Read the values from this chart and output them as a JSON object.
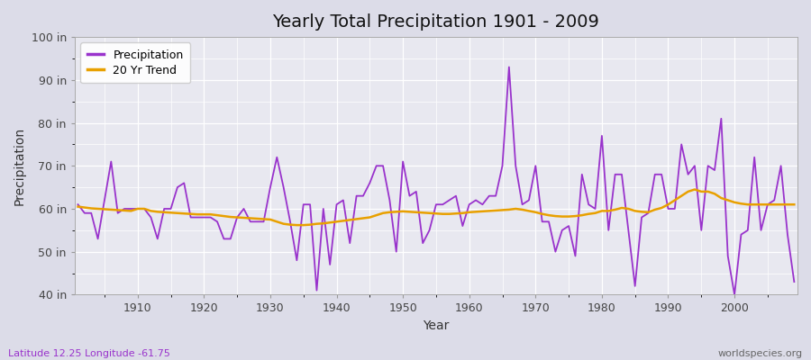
{
  "title": "Yearly Total Precipitation 1901 - 2009",
  "xlabel": "Year",
  "ylabel": "Precipitation",
  "subtitle_left": "Latitude 12.25 Longitude -61.75",
  "subtitle_right": "worldspecies.org",
  "ylim": [
    40,
    100
  ],
  "yticks": [
    40,
    50,
    60,
    70,
    80,
    90,
    100
  ],
  "ytick_labels": [
    "40 in",
    "50 in",
    "60 in",
    "70 in",
    "80 in",
    "90 in",
    "100 in"
  ],
  "xticks": [
    1910,
    1920,
    1930,
    1940,
    1950,
    1960,
    1970,
    1980,
    1990,
    2000
  ],
  "precip_color": "#9933cc",
  "trend_color": "#e8a000",
  "bg_color": "#e8e8f0",
  "plot_bg_color": "#e8e8f0",
  "fig_bg_color": "#dcdce8",
  "years": [
    1901,
    1902,
    1903,
    1904,
    1905,
    1906,
    1907,
    1908,
    1909,
    1910,
    1911,
    1912,
    1913,
    1914,
    1915,
    1916,
    1917,
    1918,
    1919,
    1920,
    1921,
    1922,
    1923,
    1924,
    1925,
    1926,
    1927,
    1928,
    1929,
    1930,
    1931,
    1932,
    1933,
    1934,
    1935,
    1936,
    1937,
    1938,
    1939,
    1940,
    1941,
    1942,
    1943,
    1944,
    1945,
    1946,
    1947,
    1948,
    1949,
    1950,
    1951,
    1952,
    1953,
    1954,
    1955,
    1956,
    1957,
    1958,
    1959,
    1960,
    1961,
    1962,
    1963,
    1964,
    1965,
    1966,
    1967,
    1968,
    1969,
    1970,
    1971,
    1972,
    1973,
    1974,
    1975,
    1976,
    1977,
    1978,
    1979,
    1980,
    1981,
    1982,
    1983,
    1984,
    1985,
    1986,
    1987,
    1988,
    1989,
    1990,
    1991,
    1992,
    1993,
    1994,
    1995,
    1996,
    1997,
    1998,
    1999,
    2000,
    2001,
    2002,
    2003,
    2004,
    2005,
    2006,
    2007,
    2008,
    2009
  ],
  "precipitation": [
    61,
    59,
    59,
    53,
    62,
    71,
    59,
    60,
    60,
    60,
    60,
    58,
    53,
    60,
    60,
    65,
    66,
    58,
    58,
    58,
    58,
    57,
    53,
    53,
    58,
    60,
    57,
    57,
    57,
    65,
    72,
    65,
    57,
    48,
    61,
    61,
    41,
    60,
    47,
    61,
    62,
    52,
    63,
    63,
    66,
    70,
    70,
    62,
    50,
    71,
    63,
    64,
    52,
    55,
    61,
    61,
    62,
    63,
    56,
    61,
    62,
    61,
    63,
    63,
    70,
    93,
    70,
    61,
    62,
    70,
    57,
    57,
    50,
    55,
    56,
    49,
    68,
    61,
    60,
    77,
    55,
    68,
    68,
    55,
    42,
    58,
    59,
    68,
    68,
    60,
    60,
    75,
    68,
    70,
    55,
    70,
    69,
    81,
    49,
    40,
    54,
    55,
    72,
    55,
    61,
    62,
    70,
    54,
    43
  ],
  "trend": [
    60.5,
    60.3,
    60.1,
    60.0,
    59.9,
    59.8,
    59.7,
    59.6,
    59.5,
    60.0,
    60.0,
    59.5,
    59.3,
    59.2,
    59.1,
    59.0,
    58.9,
    58.8,
    58.7,
    58.7,
    58.7,
    58.5,
    58.3,
    58.1,
    58.0,
    57.9,
    57.8,
    57.7,
    57.6,
    57.5,
    57.0,
    56.5,
    56.3,
    56.2,
    56.2,
    56.3,
    56.5,
    56.6,
    56.8,
    57.0,
    57.2,
    57.4,
    57.6,
    57.8,
    58.0,
    58.5,
    59.0,
    59.2,
    59.3,
    59.4,
    59.3,
    59.2,
    59.1,
    59.0,
    58.9,
    58.8,
    58.8,
    58.9,
    59.0,
    59.2,
    59.3,
    59.4,
    59.5,
    59.6,
    59.7,
    59.8,
    60.0,
    59.8,
    59.5,
    59.2,
    58.8,
    58.5,
    58.3,
    58.2,
    58.2,
    58.3,
    58.5,
    58.8,
    59.0,
    59.5,
    59.5,
    59.8,
    60.2,
    60.0,
    59.5,
    59.3,
    59.2,
    59.8,
    60.2,
    61.0,
    62.0,
    63.0,
    64.0,
    64.5,
    64.0,
    64.0,
    63.5,
    62.5,
    62.0,
    61.5,
    61.2,
    61.0,
    61.0,
    61.0,
    61.0,
    61.0,
    61.0,
    61.0,
    61.0
  ]
}
